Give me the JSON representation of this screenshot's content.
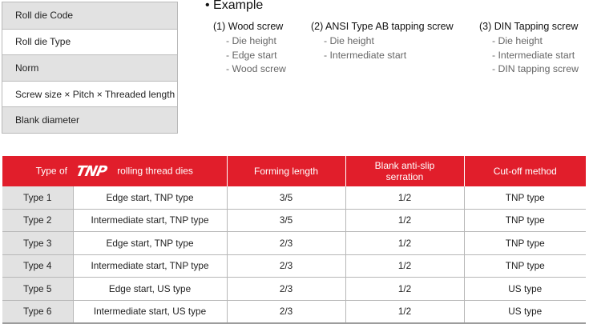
{
  "code_box": {
    "items": [
      "Roll die Code",
      "Roll die Type",
      "Norm",
      "Screw size × Pitch × Threaded length",
      "Blank diameter"
    ]
  },
  "example": {
    "title": "• Example",
    "columns": [
      {
        "heading": "(1) Wood screw",
        "items": [
          "- Die height",
          "- Edge start",
          "- Wood screw"
        ]
      },
      {
        "heading": "(2) ANSI Type AB tapping screw",
        "items": [
          "- Die height",
          "- Intermediate start"
        ]
      },
      {
        "heading": "(3) DIN Tapping screw",
        "items": [
          "- Die height",
          "- Intermediate start",
          "- DIN tapping screw"
        ]
      }
    ]
  },
  "table": {
    "header": {
      "type_prefix": "Type of",
      "logo": "TNP",
      "type_suffix": "rolling thread dies",
      "forming_length": "Forming length",
      "blank_serration_line1": "Blank anti-slip",
      "blank_serration_line2": "serration",
      "cutoff": "Cut-off method"
    },
    "rows": [
      [
        "Type 1",
        "Edge start, TNP type",
        "3/5",
        "1/2",
        "TNP type"
      ],
      [
        "Type 2",
        "Intermediate start, TNP type",
        "3/5",
        "1/2",
        "TNP type"
      ],
      [
        "Type 3",
        "Edge start, TNP type",
        "2/3",
        "1/2",
        "TNP type"
      ],
      [
        "Type 4",
        "Intermediate start, TNP type",
        "2/3",
        "1/2",
        "TNP type"
      ],
      [
        "Type 5",
        "Edge start, US type",
        "2/3",
        "1/2",
        "US type"
      ],
      [
        "Type 6",
        "Intermediate start, US type",
        "2/3",
        "1/2",
        "US type"
      ]
    ]
  },
  "colors": {
    "header_red": "#e11e2b",
    "shade_gray": "#e2e2e2"
  }
}
